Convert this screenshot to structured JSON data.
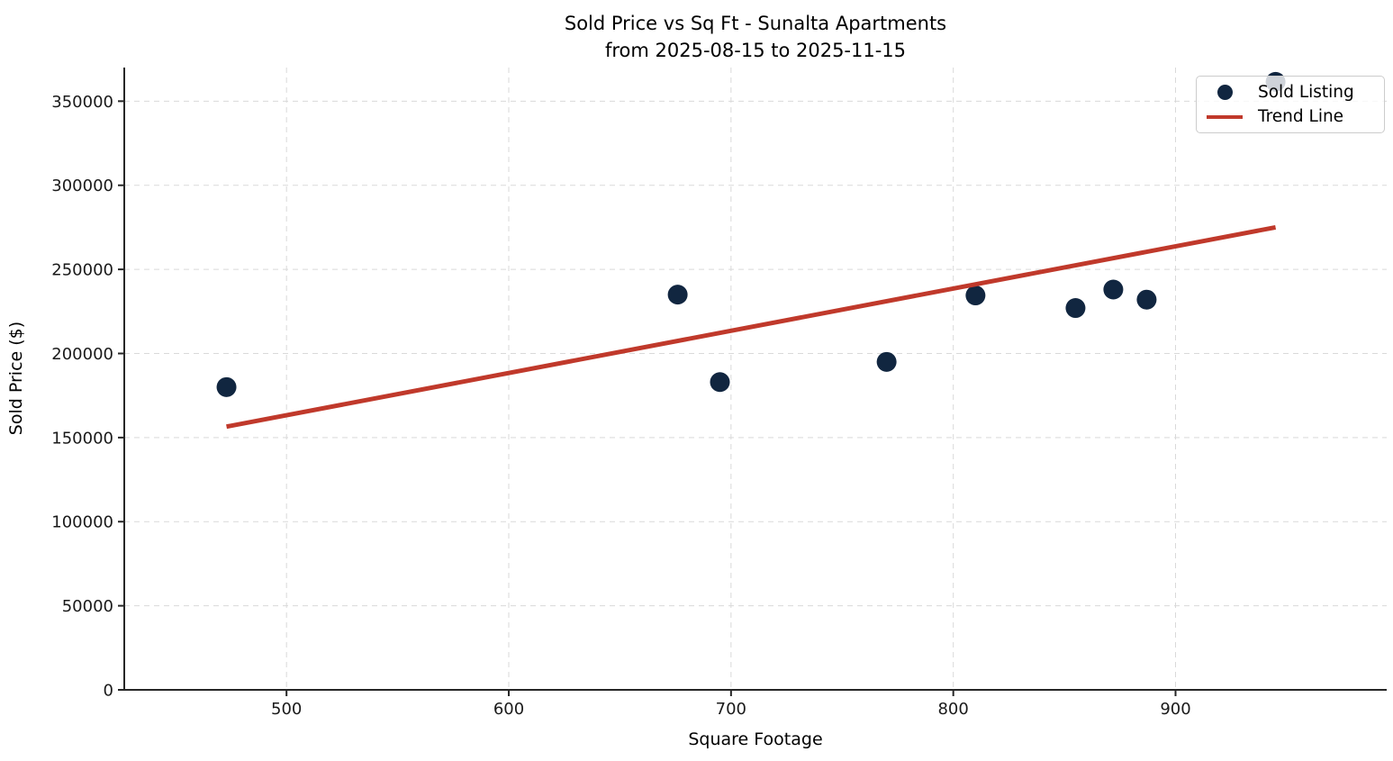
{
  "chart_data": {
    "type": "scatter",
    "title": "Sold Price vs Sq Ft - Sunalta Apartments\nfrom 2025-08-15 to 2025-11-15",
    "title_line1": "Sold Price vs Sq Ft - Sunalta Apartments",
    "title_line2": "from 2025-08-15 to 2025-11-15",
    "xlabel": "Square Footage",
    "ylabel": "Sold Price ($)",
    "xlim": [
      427,
      995
    ],
    "ylim": [
      0,
      370000
    ],
    "x_ticks": [
      500,
      600,
      700,
      800,
      900
    ],
    "y_ticks": [
      0,
      50000,
      100000,
      150000,
      200000,
      250000,
      300000,
      350000
    ],
    "grid": true,
    "legend": {
      "position": "upper right",
      "items": [
        "Sold Listing",
        "Trend Line"
      ]
    },
    "series": [
      {
        "name": "Sold Listing",
        "type": "scatter",
        "color": "#112640",
        "points": [
          [
            473,
            180000
          ],
          [
            676,
            235000
          ],
          [
            695,
            183000
          ],
          [
            770,
            195000
          ],
          [
            810,
            234500
          ],
          [
            855,
            227000
          ],
          [
            872,
            238000
          ],
          [
            887,
            232000
          ],
          [
            945,
            361500
          ]
        ]
      },
      {
        "name": "Trend Line",
        "type": "line",
        "color": "#c0392b",
        "points": [
          [
            473,
            156500
          ],
          [
            945,
            275000
          ]
        ]
      }
    ]
  }
}
